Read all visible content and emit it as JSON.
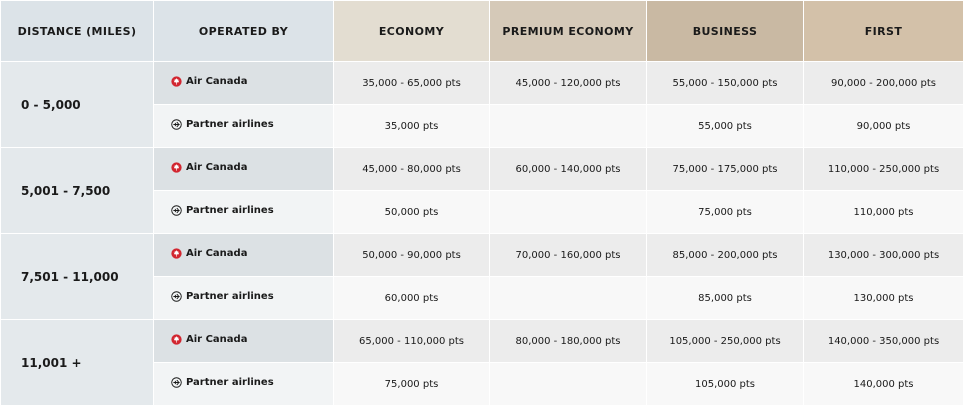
{
  "headers": {
    "distance": "DISTANCE (MILES)",
    "operated_by": "OPERATED BY",
    "economy": "ECONOMY",
    "premium_economy": "PREMIUM ECONOMY",
    "business": "BUSINESS",
    "first": "FIRST"
  },
  "operators": {
    "air_canada": "Air Canada",
    "partner": "Partner airlines"
  },
  "bands": [
    {
      "distance": "0 - 5,000",
      "air_canada": {
        "economy": "35,000 - 65,000 pts",
        "premium_economy": "45,000 - 120,000 pts",
        "business": "55,000 - 150,000 pts",
        "first": "90,000 - 200,000 pts"
      },
      "partner": {
        "economy": "35,000 pts",
        "premium_economy": "",
        "business": "55,000 pts",
        "first": "90,000 pts"
      }
    },
    {
      "distance": "5,001 - 7,500",
      "air_canada": {
        "economy": "45,000 - 80,000 pts",
        "premium_economy": "60,000 - 140,000 pts",
        "business": "75,000 - 175,000 pts",
        "first": "110,000 - 250,000 pts"
      },
      "partner": {
        "economy": "50,000 pts",
        "premium_economy": "",
        "business": "75,000 pts",
        "first": "110,000 pts"
      }
    },
    {
      "distance": "7,501 - 11,000",
      "air_canada": {
        "economy": "50,000 - 90,000 pts",
        "premium_economy": "70,000 - 160,000 pts",
        "business": "85,000 - 200,000 pts",
        "first": "130,000 - 300,000 pts"
      },
      "partner": {
        "economy": "60,000 pts",
        "premium_economy": "",
        "business": "85,000 pts",
        "first": "130,000 pts"
      }
    },
    {
      "distance": "11,001 +",
      "air_canada": {
        "economy": "65,000 - 110,000 pts",
        "premium_economy": "80,000 - 180,000 pts",
        "business": "105,000 - 250,000 pts",
        "first": "140,000 - 350,000 pts"
      },
      "partner": {
        "economy": "75,000 pts",
        "premium_economy": "",
        "business": "105,000 pts",
        "first": "140,000 pts"
      }
    }
  ],
  "icons": {
    "air_canada": "maple-leaf-icon",
    "partner": "plane-circle-icon"
  },
  "colors": {
    "maple_leaf": "#d22630"
  }
}
